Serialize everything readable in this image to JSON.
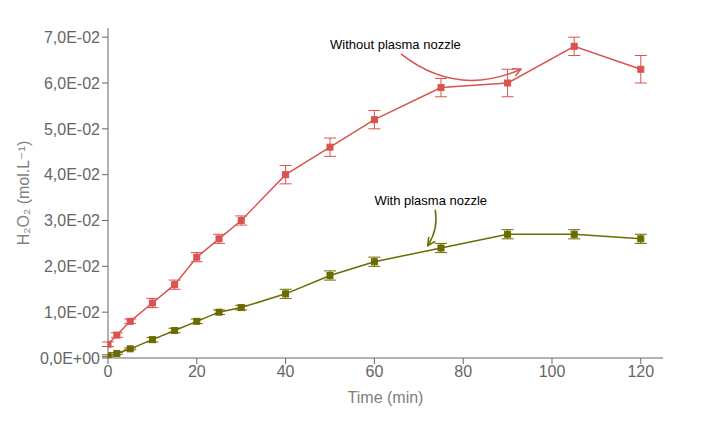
{
  "chart_data": {
    "type": "line",
    "x_label": "Time (min)",
    "y_label": "H₂O₂ (mol.L⁻¹)",
    "xlim": [
      0,
      125
    ],
    "xticks": [
      0,
      20,
      40,
      60,
      80,
      100,
      120
    ],
    "ylim": [
      0,
      0.072
    ],
    "yticks": [
      {
        "value": 0,
        "label": "0,0E+00"
      },
      {
        "value": 0.01,
        "label": "1,0E-02"
      },
      {
        "value": 0.02,
        "label": "2,0E-02"
      },
      {
        "value": 0.03,
        "label": "3,0E-02"
      },
      {
        "value": 0.04,
        "label": "4,0E-02"
      },
      {
        "value": 0.05,
        "label": "5,0E-02"
      },
      {
        "value": 0.06,
        "label": "6,0E-02"
      },
      {
        "value": 0.07,
        "label": "7,0E-02"
      }
    ],
    "grid": false,
    "series": [
      {
        "color": "#d9534f",
        "marker": "square",
        "x": [
          0,
          2,
          5,
          10,
          15,
          20,
          25,
          30,
          40,
          50,
          60,
          75,
          90,
          105,
          120
        ],
        "values": [
          0.003,
          0.005,
          0.008,
          0.012,
          0.016,
          0.022,
          0.026,
          0.03,
          0.04,
          0.046,
          0.052,
          0.059,
          0.06,
          0.068,
          0.063
        ],
        "errors": [
          0.0005,
          0.0005,
          0.0005,
          0.001,
          0.001,
          0.001,
          0.001,
          0.001,
          0.002,
          0.002,
          0.002,
          0.002,
          0.003,
          0.002,
          0.003
        ]
      },
      {
        "color": "#6b6b00",
        "marker": "square",
        "x": [
          0,
          2,
          5,
          10,
          15,
          20,
          25,
          30,
          40,
          50,
          60,
          75,
          90,
          105,
          120
        ],
        "values": [
          0.0005,
          0.001,
          0.002,
          0.004,
          0.006,
          0.008,
          0.01,
          0.011,
          0.014,
          0.018,
          0.021,
          0.024,
          0.027,
          0.027,
          0.026
        ],
        "errors": [
          0.0002,
          0.0002,
          0.0002,
          0.0005,
          0.0005,
          0.0005,
          0.0005,
          0.0005,
          0.001,
          0.001,
          0.001,
          0.001,
          0.001,
          0.001,
          0.001
        ]
      }
    ],
    "annotations": [
      {
        "text": "Without plasma nozzle",
        "x": 93,
        "y": 0.063,
        "text_x": 50,
        "text_y": 0.067,
        "color": "#d9534f"
      },
      {
        "text": "With plasma nozzle",
        "x": 72,
        "y": 0.0245,
        "text_x": 60,
        "text_y": 0.033,
        "color": "#6b6b00"
      }
    ]
  }
}
